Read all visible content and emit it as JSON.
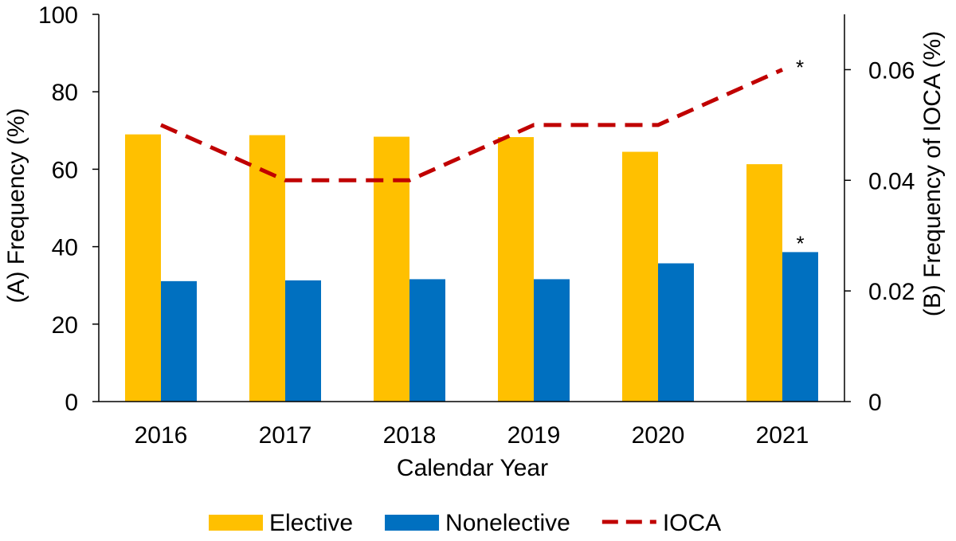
{
  "chart_data": {
    "type": "bar",
    "xlabel": "Calendar Year",
    "ylabel": "(A) Frequency (%)",
    "y2label": "(B) Frequency of IOCA (%)",
    "categories": [
      "2016",
      "2017",
      "2018",
      "2019",
      "2020",
      "2021"
    ],
    "ylim": [
      0,
      100
    ],
    "yticks": [
      "0",
      "20",
      "40",
      "60",
      "80",
      "100"
    ],
    "y2lim": [
      0,
      0.07
    ],
    "y2ticks": [
      "0",
      "0.02",
      "0.04",
      "0.06"
    ],
    "grid": false,
    "legend_position": "bottom",
    "series": [
      {
        "name": "Elective",
        "type": "bar",
        "axis": "left",
        "color": "#FFC000",
        "values": [
          69,
          68.8,
          68.4,
          68.3,
          64.5,
          61.3
        ]
      },
      {
        "name": "Nonelective",
        "type": "bar",
        "axis": "left",
        "color": "#0070C0",
        "values": [
          31.1,
          31.3,
          31.6,
          31.6,
          35.7,
          38.6
        ]
      },
      {
        "name": "IOCA",
        "type": "line",
        "style": "dashed",
        "axis": "right",
        "color": "#C00000",
        "values": [
          0.05,
          0.04,
          0.04,
          0.05,
          0.05,
          0.06
        ]
      }
    ],
    "annotations": [
      {
        "text": "*",
        "series": "Nonelective",
        "category": "2021"
      },
      {
        "text": "*",
        "series": "IOCA",
        "category": "2021"
      }
    ]
  }
}
